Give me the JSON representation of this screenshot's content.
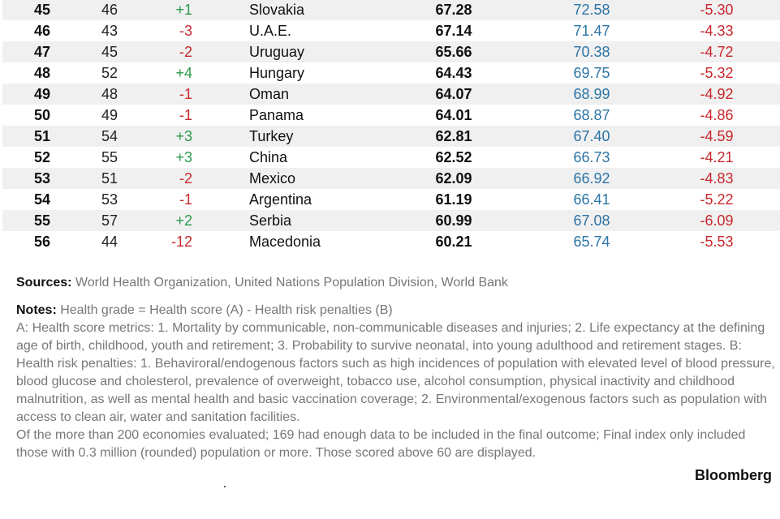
{
  "rows": [
    {
      "rank": "45",
      "prev": "46",
      "change": "+1",
      "country": "Slovakia",
      "grade": "67.28",
      "score": "72.58",
      "penalty": "-5.30"
    },
    {
      "rank": "46",
      "prev": "43",
      "change": "-3",
      "country": "U.A.E.",
      "grade": "67.14",
      "score": "71.47",
      "penalty": "-4.33"
    },
    {
      "rank": "47",
      "prev": "45",
      "change": "-2",
      "country": "Uruguay",
      "grade": "65.66",
      "score": "70.38",
      "penalty": "-4.72"
    },
    {
      "rank": "48",
      "prev": "52",
      "change": "+4",
      "country": "Hungary",
      "grade": "64.43",
      "score": "69.75",
      "penalty": "-5.32"
    },
    {
      "rank": "49",
      "prev": "48",
      "change": "-1",
      "country": "Oman",
      "grade": "64.07",
      "score": "68.99",
      "penalty": "-4.92"
    },
    {
      "rank": "50",
      "prev": "49",
      "change": "-1",
      "country": "Panama",
      "grade": "64.01",
      "score": "68.87",
      "penalty": "-4.86"
    },
    {
      "rank": "51",
      "prev": "54",
      "change": "+3",
      "country": "Turkey",
      "grade": "62.81",
      "score": "67.40",
      "penalty": "-4.59"
    },
    {
      "rank": "52",
      "prev": "55",
      "change": "+3",
      "country": "China",
      "grade": "62.52",
      "score": "66.73",
      "penalty": "-4.21"
    },
    {
      "rank": "53",
      "prev": "51",
      "change": "-2",
      "country": "Mexico",
      "grade": "62.09",
      "score": "66.92",
      "penalty": "-4.83"
    },
    {
      "rank": "54",
      "prev": "53",
      "change": "-1",
      "country": "Argentina",
      "grade": "61.19",
      "score": "66.41",
      "penalty": "-5.22"
    },
    {
      "rank": "55",
      "prev": "57",
      "change": "+2",
      "country": "Serbia",
      "grade": "60.99",
      "score": "67.08",
      "penalty": "-6.09"
    },
    {
      "rank": "56",
      "prev": "44",
      "change": "-12",
      "country": "Macedonia",
      "grade": "60.21",
      "score": "65.74",
      "penalty": "-5.53"
    }
  ],
  "colors": {
    "positive": "#2a9a4a",
    "negative": "#c8282d",
    "score": "#2b74a6",
    "stripe": "#f0f0f0"
  },
  "footer": {
    "sources_label": "Sources:",
    "sources_text": " World Health Organization, United Nations Population Division, World Bank",
    "notes_label": "Notes:",
    "notes_line1": " Health grade = Health score (A) - Health risk penalties (B)",
    "notes_body": "A: Health score metrics: 1. Mortality by communicable, non-communicable diseases and injuries; 2. Life expectancy at the defining age of birth, childhood, youth and retirement; 3. Probability to survive neonatal, into young adulthood and retirement stages. B: Health risk penalties: 1. Behaviroral/endogenous factors such as high incidences of population with elevated level of blood pressure, blood glucose and cholesterol, prevalence of overweight, tobacco use, alcohol consumption, physical inactivity and childhood malnutrition, as well as mental health and basic vaccination coverage; 2. Environmental/exogenous factors such as population with access to clean air, water and sanitation facilities.",
    "notes_scope": "Of the more than 200 economies evaluated; 169 had enough data to be included in the final outcome; Final index only included those with 0.3 million (rounded) population or more. Those scored above 60 are displayed.",
    "brand": "Bloomberg"
  }
}
